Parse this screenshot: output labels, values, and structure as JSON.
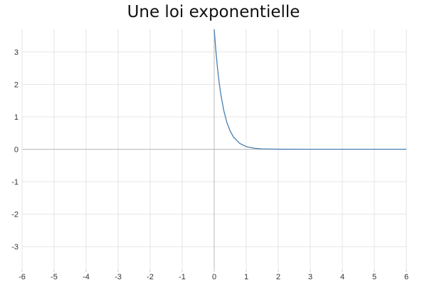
{
  "chart_data": {
    "type": "line",
    "title": "Une loi exponentielle",
    "xlabel": "",
    "ylabel": "",
    "xlim": [
      -6,
      6
    ],
    "ylim": [
      -3.7,
      3.7
    ],
    "x_ticks": [
      -6,
      -5,
      -4,
      -3,
      -2,
      -1,
      0,
      1,
      2,
      3,
      4,
      5,
      6
    ],
    "y_ticks": [
      3,
      2,
      1,
      0,
      -1,
      -2,
      -3
    ],
    "grid": true,
    "series": [
      {
        "color": "#4a7fb0",
        "x": [
          0,
          0.05,
          0.1,
          0.15,
          0.2,
          0.3,
          0.4,
          0.5,
          0.6,
          0.8,
          1,
          1.25,
          1.5,
          2,
          3,
          4,
          5,
          6
        ],
        "y": [
          3.7,
          3.06,
          2.53,
          2.09,
          1.73,
          1.19,
          0.81,
          0.56,
          0.38,
          0.18,
          0.083,
          0.031,
          0.011,
          0.0018,
          5e-05,
          0,
          0,
          0
        ]
      }
    ]
  }
}
